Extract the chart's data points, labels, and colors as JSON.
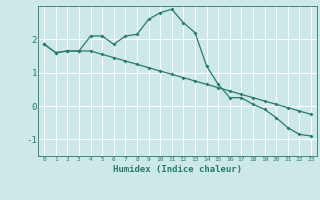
{
  "x": [
    0,
    1,
    2,
    3,
    4,
    5,
    6,
    7,
    8,
    9,
    10,
    11,
    12,
    13,
    14,
    15,
    16,
    17,
    18,
    19,
    20,
    21,
    22,
    23
  ],
  "line1": [
    1.85,
    1.6,
    1.65,
    1.65,
    2.1,
    2.1,
    1.85,
    2.1,
    2.15,
    2.6,
    2.8,
    2.9,
    2.5,
    2.2,
    1.2,
    0.65,
    0.25,
    0.25,
    0.05,
    -0.1,
    -0.35,
    -0.65,
    -0.85,
    -0.9
  ],
  "line2": [
    1.85,
    1.6,
    1.65,
    1.65,
    1.65,
    1.55,
    1.45,
    1.35,
    1.25,
    1.15,
    1.05,
    0.95,
    0.85,
    0.75,
    0.65,
    0.55,
    0.45,
    0.35,
    0.25,
    0.15,
    0.05,
    -0.05,
    -0.15,
    -0.25
  ],
  "bg_color": "#cce8e8",
  "line_color": "#2a7a6a",
  "grid_color": "#ffffff",
  "xlabel": "Humidex (Indice chaleur)",
  "ylim": [
    -1.5,
    3.0
  ],
  "xlim": [
    -0.5,
    23.5
  ]
}
